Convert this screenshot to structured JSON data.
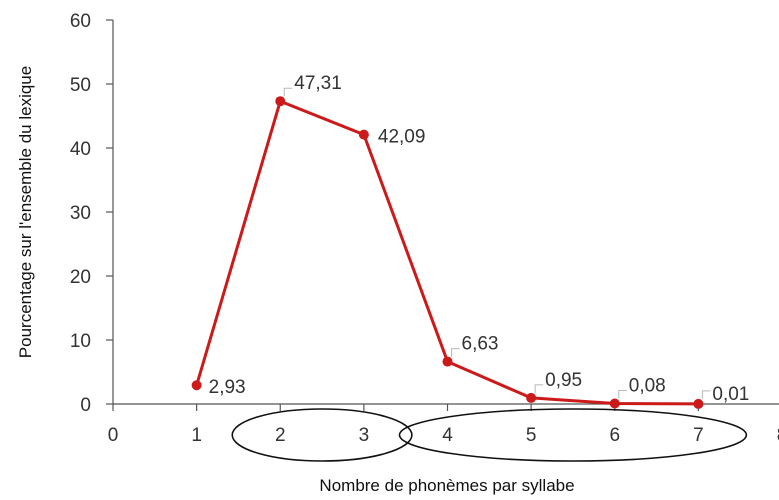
{
  "chart_data": {
    "type": "line",
    "xlabel": "Nombre de phonèmes par syllabe",
    "ylabel": "Pourcentage sur l'ensemble du lexique",
    "xlim": [
      0,
      8
    ],
    "ylim": [
      0,
      60
    ],
    "x_ticks": [
      0,
      1,
      2,
      3,
      4,
      5,
      6,
      7,
      8
    ],
    "y_ticks": [
      0,
      10,
      20,
      30,
      40,
      50,
      60
    ],
    "grid": false,
    "legend": "none",
    "series": [
      {
        "x": [
          1,
          2,
          3,
          4,
          5,
          6,
          7
        ],
        "values": [
          2.93,
          47.31,
          42.09,
          6.63,
          0.95,
          0.08,
          0.01
        ],
        "labels": [
          "2,93",
          "47,31",
          "42,09",
          "6,63",
          "0,95",
          "0,08",
          "0,01"
        ],
        "color": "#cc1a1a"
      }
    ],
    "annotations": [
      {
        "shape": "ellipse",
        "x_range": [
          2,
          3
        ]
      },
      {
        "shape": "ellipse",
        "x_range": [
          4,
          7
        ]
      }
    ]
  }
}
